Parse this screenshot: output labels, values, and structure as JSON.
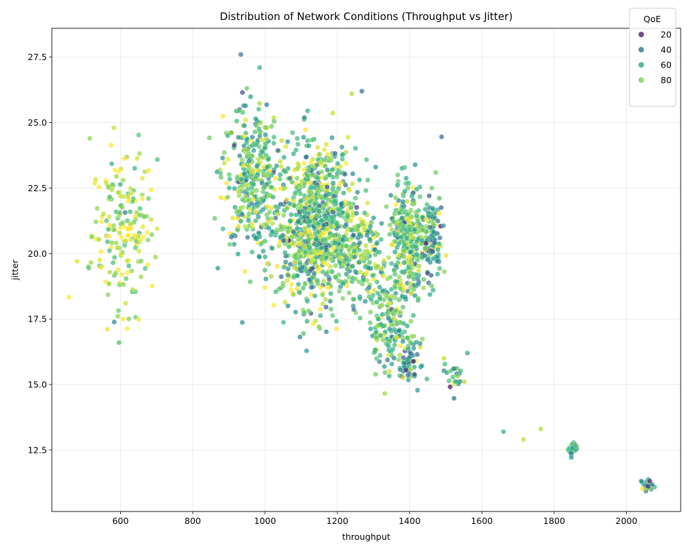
{
  "chart_data": {
    "type": "scatter",
    "title": "Distribution of Network Conditions (Throughput vs Jitter)",
    "xlabel": "throughput",
    "ylabel": "jitter",
    "xlim": [
      410,
      2150
    ],
    "ylim": [
      10.15,
      28.6
    ],
    "xticks": [
      600,
      800,
      1000,
      1200,
      1400,
      1600,
      1800,
      2000
    ],
    "xtick_labels": [
      "600",
      "800",
      "1000",
      "1200",
      "1400",
      "1600",
      "1800",
      "2000"
    ],
    "yticks": [
      12.5,
      15.0,
      17.5,
      20.0,
      22.5,
      25.0,
      27.5
    ],
    "ytick_labels": [
      "12.5",
      "15.0",
      "17.5",
      "20.0",
      "22.5",
      "25.0",
      "27.5"
    ],
    "grid": true,
    "color_variable": "QoE",
    "colormap": "viridis",
    "point_alpha": 0.7,
    "legend": {
      "title": "QoE",
      "placement": "upper right",
      "entries": [
        {
          "label": "20",
          "color": "#482475"
        },
        {
          "label": "40",
          "color": "#2a788e"
        },
        {
          "label": "60",
          "color": "#22a884"
        },
        {
          "label": "80",
          "color": "#7ad151"
        }
      ]
    },
    "clusters": [
      {
        "x_center": 610,
        "x_spread": 45,
        "y_center": 20.8,
        "y_spread": 1.6,
        "count": 190,
        "qoe_mean": 88,
        "qoe_sd": 14
      },
      {
        "x_center": 960,
        "x_spread": 40,
        "y_center": 23.0,
        "y_spread": 1.4,
        "count": 330,
        "qoe_mean": 70,
        "qoe_sd": 18
      },
      {
        "x_center": 1140,
        "x_spread": 55,
        "y_center": 21.0,
        "y_spread": 1.5,
        "count": 900,
        "qoe_mean": 72,
        "qoe_sd": 20
      },
      {
        "x_center": 1270,
        "x_spread": 30,
        "y_center": 20.0,
        "y_spread": 1.0,
        "count": 160,
        "qoe_mean": 70,
        "qoe_sd": 18
      },
      {
        "x_center": 1340,
        "x_spread": 25,
        "y_center": 17.3,
        "y_spread": 0.9,
        "count": 150,
        "qoe_mean": 72,
        "qoe_sd": 16
      },
      {
        "x_center": 1395,
        "x_spread": 25,
        "y_center": 20.4,
        "y_spread": 1.1,
        "count": 300,
        "qoe_mean": 72,
        "qoe_sd": 18
      },
      {
        "x_center": 1400,
        "x_spread": 15,
        "y_center": 15.9,
        "y_spread": 0.4,
        "count": 60,
        "qoe_mean": 58,
        "qoe_sd": 20
      },
      {
        "x_center": 1460,
        "x_spread": 15,
        "y_center": 20.6,
        "y_spread": 0.9,
        "count": 120,
        "qoe_mean": 58,
        "qoe_sd": 22
      },
      {
        "x_center": 1525,
        "x_spread": 12,
        "y_center": 15.3,
        "y_spread": 0.3,
        "count": 25,
        "qoe_mean": 62,
        "qoe_sd": 20
      },
      {
        "x_center": 1850,
        "x_spread": 6,
        "y_center": 12.55,
        "y_spread": 0.12,
        "count": 35,
        "qoe_mean": 62,
        "qoe_sd": 15
      },
      {
        "x_center": 2060,
        "x_spread": 8,
        "y_center": 11.15,
        "y_spread": 0.12,
        "count": 30,
        "qoe_mean": 50,
        "qoe_sd": 22
      }
    ],
    "outliers": [
      {
        "x": 480,
        "y": 19.7,
        "qoe": 95
      },
      {
        "x": 1660,
        "y": 13.2,
        "qoe": 65
      },
      {
        "x": 1715,
        "y": 12.9,
        "qoe": 90
      },
      {
        "x": 1763,
        "y": 13.3,
        "qoe": 88
      },
      {
        "x": 933,
        "y": 27.6,
        "qoe": 40
      },
      {
        "x": 985,
        "y": 27.1,
        "qoe": 65
      },
      {
        "x": 1268,
        "y": 26.2,
        "qoe": 38
      },
      {
        "x": 1240,
        "y": 26.1,
        "qoe": 88
      },
      {
        "x": 1560,
        "y": 16.2,
        "qoe": 62
      },
      {
        "x": 1495,
        "y": 16.0,
        "qoe": 90
      }
    ]
  }
}
